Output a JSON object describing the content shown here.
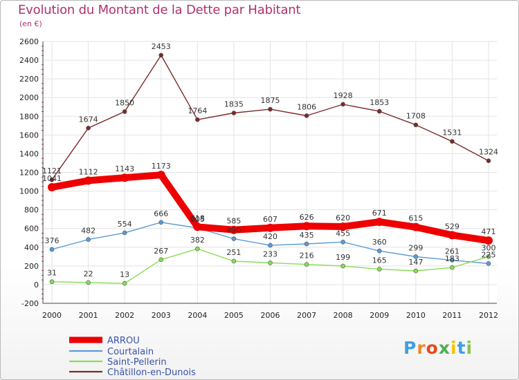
{
  "chart_data": {
    "type": "line",
    "title": "Evolution du Montant de la Dette par Habitant",
    "subtitle": "(en €)",
    "xlabel": "",
    "ylabel": "",
    "categories": [
      "2000",
      "2001",
      "2002",
      "2003",
      "2004",
      "2005",
      "2006",
      "2007",
      "2008",
      "2009",
      "2010",
      "2011",
      "2012"
    ],
    "ylim": [
      -200,
      2600
    ],
    "yticks": [
      "-200",
      "0",
      "200",
      "400",
      "600",
      "800",
      "1000",
      "1200",
      "1400",
      "1600",
      "1800",
      "2000",
      "2200",
      "2400",
      "2600"
    ],
    "grid": true,
    "legend_position": "bottom-left",
    "series": [
      {
        "name": "ARROU",
        "color": "#ee0000",
        "values": [
          1041,
          1112,
          1143,
          1173,
          618,
          585,
          607,
          626,
          620,
          671,
          615,
          529,
          471
        ],
        "labels": [
          "1041",
          "1112",
          "1143",
          "1173",
          "618",
          "585",
          "607",
          "626",
          "620",
          "671",
          "615",
          "529",
          "471"
        ]
      },
      {
        "name": "Courtalain",
        "color": "#5b9bd5",
        "values": [
          376,
          482,
          554,
          666,
          605,
          490,
          420,
          435,
          455,
          360,
          299,
          261,
          225
        ],
        "labels": [
          "376",
          "482",
          "554",
          "666",
          "605",
          "490",
          "420",
          "435",
          "455",
          "360",
          "299",
          "261",
          "225"
        ]
      },
      {
        "name": "Saint-Pellerin",
        "color": "#88dd55",
        "values": [
          31,
          22,
          13,
          267,
          382,
          251,
          233,
          216,
          199,
          165,
          147,
          183,
          300
        ],
        "labels": [
          "31",
          "22",
          "13",
          "267",
          "382",
          "251",
          "233",
          "216",
          "199",
          "165",
          "147",
          "183",
          "300"
        ]
      },
      {
        "name": "Châtillon-en-Dunois",
        "color": "#7a2a2a",
        "values": [
          1121,
          1674,
          1850,
          2453,
          1764,
          1835,
          1875,
          1806,
          1928,
          1853,
          1708,
          1531,
          1324
        ],
        "labels": [
          "1121",
          "1674",
          "1850",
          "2453",
          "1764",
          "1835",
          "1875",
          "1806",
          "1928",
          "1853",
          "1708",
          "1531",
          "1324"
        ]
      }
    ]
  },
  "logo": {
    "letters": [
      "P",
      "r",
      "o",
      "x",
      "i",
      "t",
      "i"
    ],
    "colors": [
      "#3fa0e0",
      "#f08a24",
      "#e64a19",
      "#4caf50",
      "#f7c200",
      "#3fa0e0",
      "#8bc34a"
    ]
  }
}
